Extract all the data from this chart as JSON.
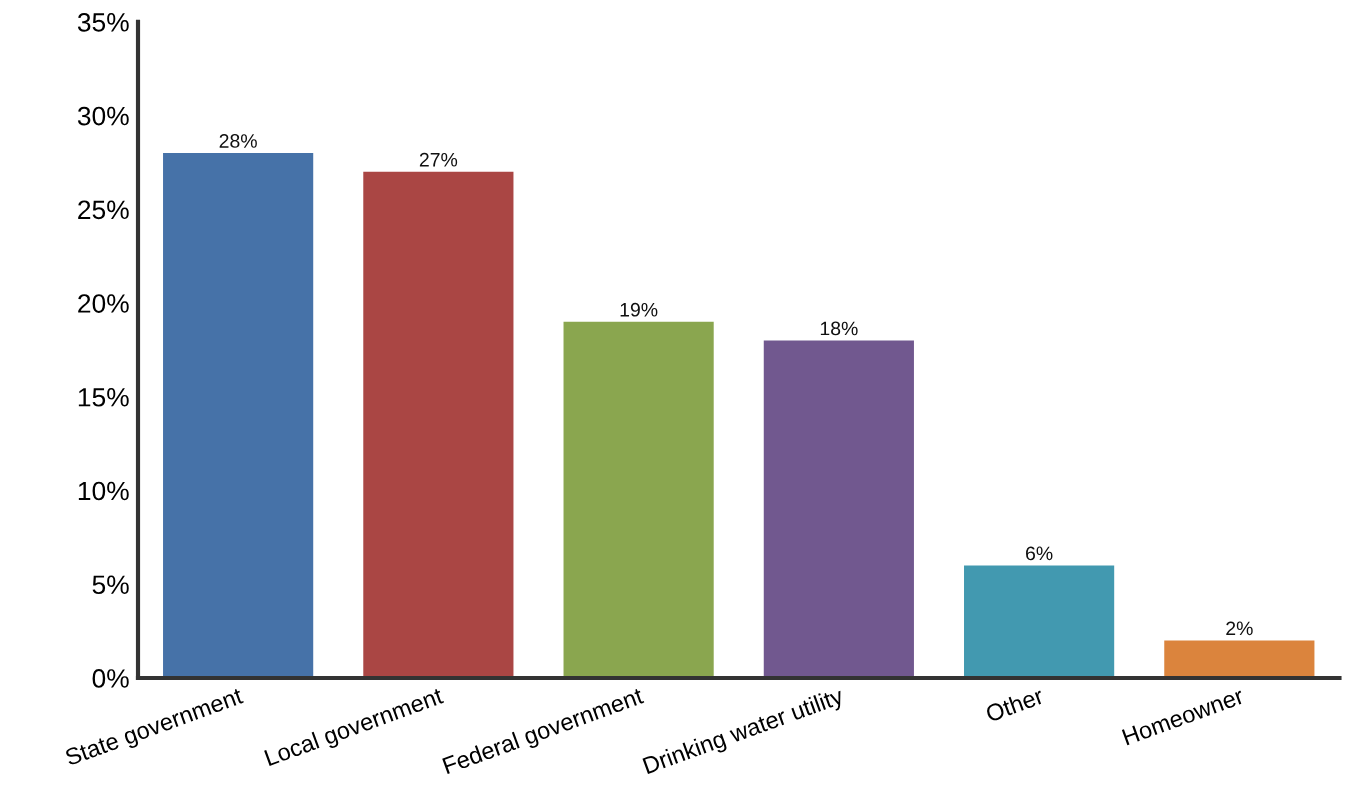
{
  "chart_data": {
    "type": "bar",
    "categories": [
      "State government",
      "Local government",
      "Federal government",
      "Drinking water utility",
      "Other",
      "Homeowner"
    ],
    "values": [
      28,
      27,
      19,
      18,
      6,
      2
    ],
    "colors": [
      "#4672a8",
      "#aa4644",
      "#8aa64f",
      "#71588f",
      "#4299b0",
      "#db843d"
    ],
    "value_labels": [
      "28%",
      "27%",
      "19%",
      "18%",
      "6%",
      "2%"
    ],
    "ylim": [
      0,
      35
    ],
    "yticks": [
      {
        "value": 0,
        "label": "0%"
      },
      {
        "value": 5,
        "label": "5%"
      },
      {
        "value": 10,
        "label": "10%"
      },
      {
        "value": 15,
        "label": "15%"
      },
      {
        "value": 20,
        "label": "20%"
      },
      {
        "value": 25,
        "label": "25%"
      },
      {
        "value": 30,
        "label": "30%"
      },
      {
        "value": 35,
        "label": "35%"
      }
    ],
    "grid": false,
    "legend": false
  }
}
